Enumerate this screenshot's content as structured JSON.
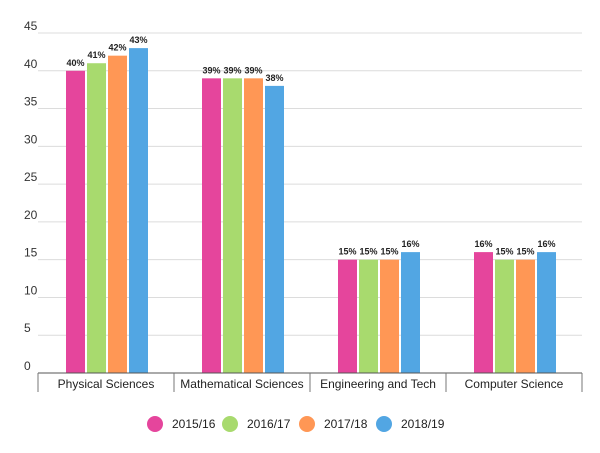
{
  "chart_data": {
    "type": "bar",
    "title": "",
    "xlabel": "",
    "ylabel": "",
    "ylim": [
      0,
      45
    ],
    "yticks": [
      0,
      5,
      10,
      15,
      20,
      25,
      30,
      35,
      40,
      45
    ],
    "grid": true,
    "legend_position": "bottom",
    "categories": [
      "Physical Sciences",
      "Mathematical Sciences",
      "Engineering and Tech",
      "Computer Science"
    ],
    "series": [
      {
        "name": "2015/16",
        "color": "#E5459C",
        "values": [
          40,
          39,
          15,
          16
        ],
        "labels": [
          "40%",
          "39%",
          "15%",
          "16%"
        ]
      },
      {
        "name": "2016/17",
        "color": "#A8DA6E",
        "values": [
          41,
          39,
          15,
          15
        ],
        "labels": [
          "41%",
          "39%",
          "15%",
          "15%"
        ]
      },
      {
        "name": "2017/18",
        "color": "#FF9755",
        "values": [
          42,
          39,
          15,
          15
        ],
        "labels": [
          "42%",
          "39%",
          "15%",
          "15%"
        ]
      },
      {
        "name": "2018/19",
        "color": "#52A6E3",
        "values": [
          43,
          38,
          16,
          16
        ],
        "labels": [
          "43%",
          "38%",
          "16%",
          "16%"
        ]
      }
    ]
  }
}
